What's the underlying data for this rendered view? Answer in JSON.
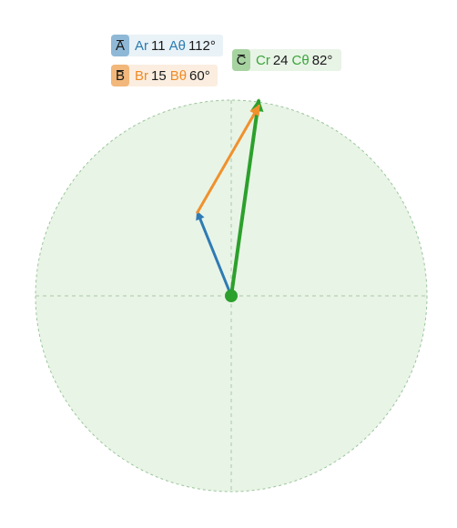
{
  "vectors": [
    {
      "key": "a",
      "name": "A",
      "r_label": "Ar",
      "r_value": "11",
      "theta_label": "Aθ",
      "theta_value": "112°",
      "r": 11,
      "theta": 112,
      "color": "#2e7bb4"
    },
    {
      "key": "b",
      "name": "B",
      "r_label": "Br",
      "r_value": "15",
      "theta_label": "Bθ",
      "theta_value": "60°",
      "r": 15,
      "theta": 60,
      "color": "#f0912c"
    },
    {
      "key": "c",
      "name": "C",
      "r_label": "Cr",
      "r_value": "24",
      "theta_label": "Cθ",
      "theta_value": "82°",
      "r": 24,
      "theta": 82,
      "color": "#2ca02c"
    }
  ],
  "colors": {
    "disk_fill": "#e8f4e6",
    "disk_stroke": "#9bc59b",
    "axis": "#a8c8a8",
    "origin": "#2ca02c"
  }
}
